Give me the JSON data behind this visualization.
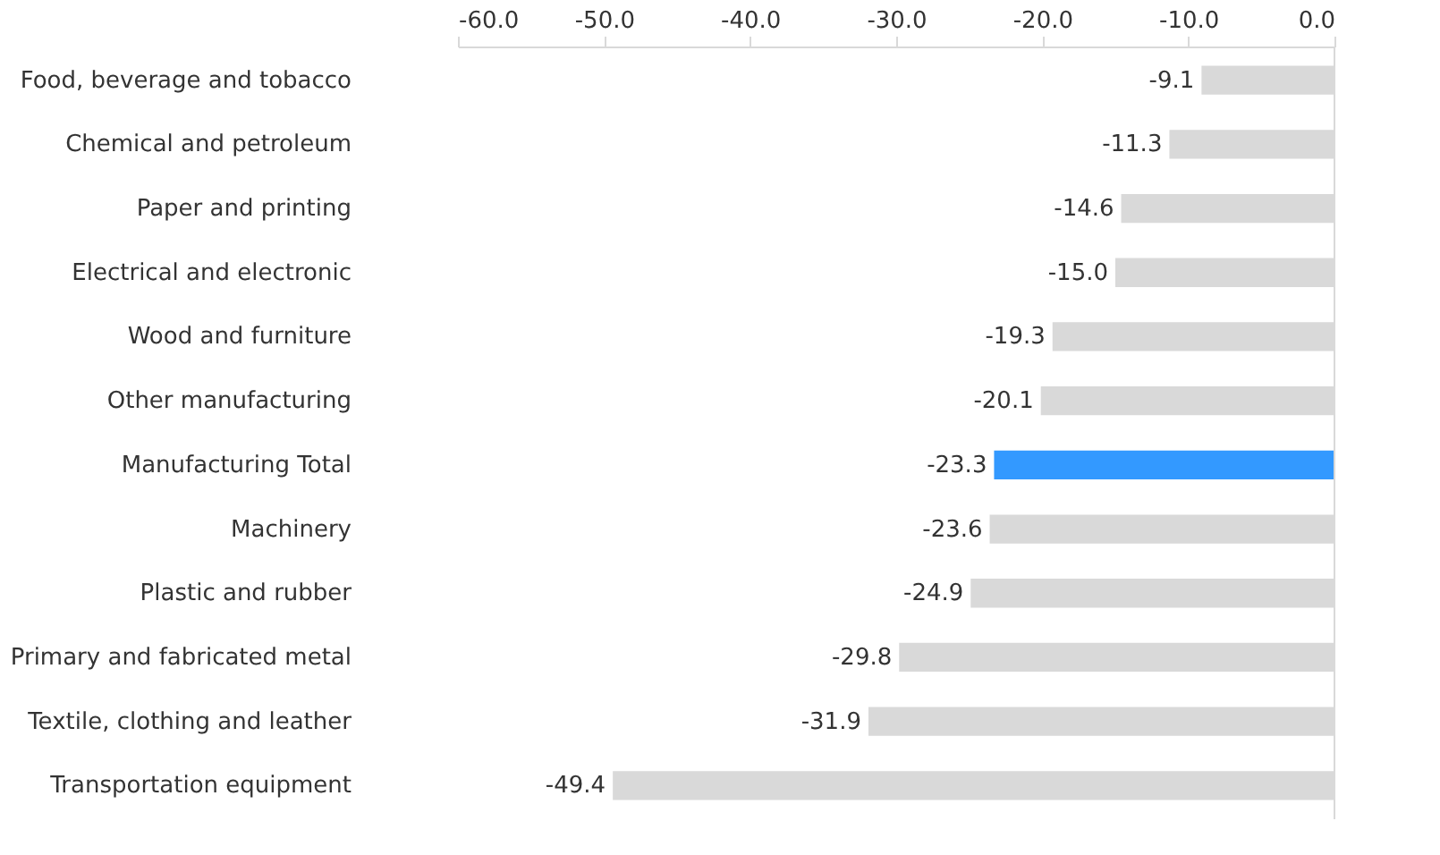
{
  "chart_data": {
    "type": "bar",
    "orientation": "horizontal",
    "categories": [
      "Food, beverage and tobacco",
      "Chemical and petroleum",
      "Paper and printing",
      "Electrical and electronic",
      "Wood and furniture",
      "Other manufacturing",
      "Manufacturing Total",
      "Machinery",
      "Plastic and rubber",
      "Primary and fabricated metal",
      "Textile, clothing and leather",
      "Transportation equipment"
    ],
    "values": [
      -9.1,
      -11.3,
      -14.6,
      -15.0,
      -19.3,
      -20.1,
      -23.3,
      -23.6,
      -24.9,
      -29.8,
      -31.9,
      -49.4
    ],
    "value_labels": [
      "-9.1",
      "-11.3",
      "-14.6",
      "-15.0",
      "-19.3",
      "-20.1",
      "-23.3",
      "-23.6",
      "-24.9",
      "-29.8",
      "-31.9",
      "-49.4"
    ],
    "colors": [
      "#d9d9d9",
      "#d9d9d9",
      "#d9d9d9",
      "#d9d9d9",
      "#d9d9d9",
      "#d9d9d9",
      "#3399ff",
      "#d9d9d9",
      "#d9d9d9",
      "#d9d9d9",
      "#d9d9d9",
      "#d9d9d9"
    ],
    "xlim": [
      -60,
      0
    ],
    "xticks": [
      {
        "value": -60,
        "label": "-60.0"
      },
      {
        "value": -50,
        "label": "-50.0"
      },
      {
        "value": -40,
        "label": "-40.0"
      },
      {
        "value": -30,
        "label": "-30.0"
      },
      {
        "value": -20,
        "label": "-20.0"
      },
      {
        "value": -10,
        "label": "-10.0"
      },
      {
        "value": 0,
        "label": "0.0"
      }
    ],
    "grid": false
  }
}
